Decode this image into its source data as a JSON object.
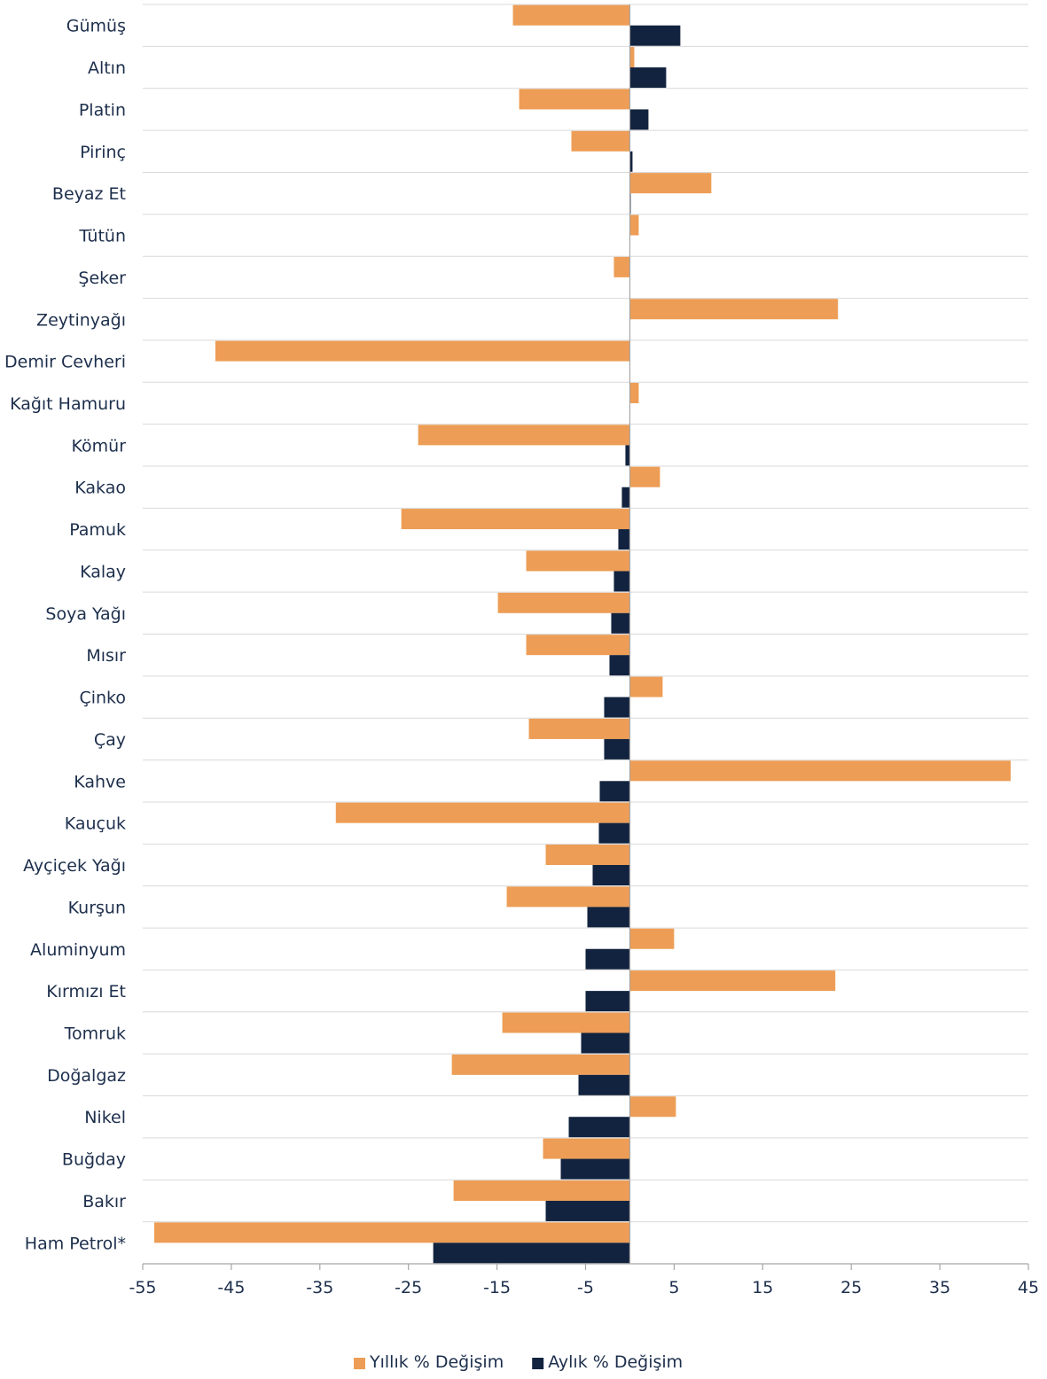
{
  "chart_data": {
    "type": "bar",
    "orientation": "horizontal",
    "categories": [
      "Gümüş",
      "Altın",
      "Platin",
      "Pirinç",
      "Beyaz Et",
      "Tütün",
      "Şeker",
      "Zeytinyağı",
      "Demir Cevheri",
      "Kağıt Hamuru",
      "Kömür",
      "Kakao",
      "Pamuk",
      "Kalay",
      "Soya Yağı",
      "Mısır",
      "Çinko",
      "Çay",
      "Kahve",
      "Kauçuk",
      "Ayçiçek Yağı",
      "Kurşun",
      "Aluminyum",
      "Kırmızı Et",
      "Tomruk",
      "Doğalgaz",
      "Nikel",
      "Buğday",
      "Bakır",
      "Ham Petrol*"
    ],
    "series": [
      {
        "name": "Yıllık % Değişim",
        "color": "#ed9d55",
        "values": [
          -13.2,
          0.5,
          -12.5,
          -6.6,
          9.2,
          1.0,
          -1.8,
          23.5,
          -46.8,
          1.0,
          -23.9,
          3.4,
          -25.8,
          -11.7,
          -14.9,
          -11.7,
          3.7,
          -11.4,
          43.0,
          -33.2,
          -9.5,
          -13.9,
          5.0,
          23.2,
          -14.4,
          -20.1,
          5.2,
          -9.8,
          -19.9,
          -53.7
        ]
      },
      {
        "name": "Aylık % Değişim",
        "color": "#12233f",
        "values": [
          5.7,
          4.1,
          2.1,
          0.3,
          0.1,
          0.0,
          0.0,
          0.0,
          0.0,
          0.0,
          -0.5,
          -0.9,
          -1.3,
          -1.8,
          -2.1,
          -2.3,
          -2.9,
          -2.9,
          -3.4,
          -3.5,
          -4.2,
          -4.8,
          -5.0,
          -5.0,
          -5.5,
          -5.8,
          -6.9,
          -7.8,
          -9.5,
          -22.2
        ]
      }
    ],
    "xlim": [
      -55,
      45
    ],
    "xticks": [
      -55,
      -45,
      -35,
      -25,
      -15,
      -5,
      5,
      15,
      25,
      35,
      45
    ],
    "xtick_labels": [
      "-55",
      "-45",
      "-35",
      "-25",
      "-15",
      "-5",
      "5",
      "15",
      "25",
      "35",
      "45"
    ],
    "title": "",
    "xlabel": "",
    "ylabel": "",
    "grid": "horizontal category separators",
    "legend_position": "bottom"
  }
}
